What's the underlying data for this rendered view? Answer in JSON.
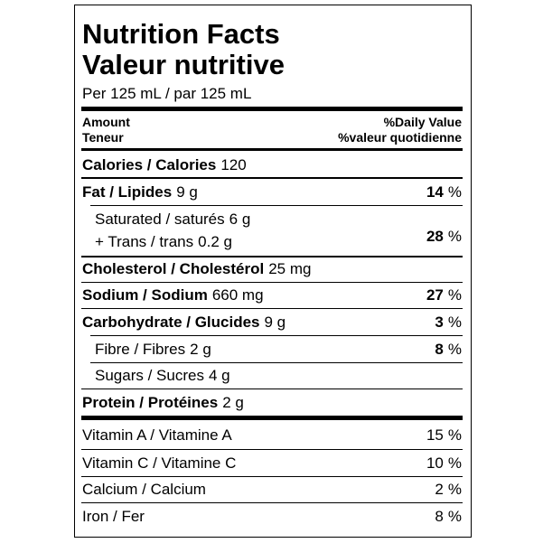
{
  "header": {
    "title_en": "Nutrition Facts",
    "title_fr": "Valeur nutritive",
    "serving": "Per 125 mL / par 125 mL"
  },
  "column_headers": {
    "amount_en": "Amount",
    "amount_fr": "Teneur",
    "dv_en": "%Daily Value",
    "dv_fr": "%valeur quotidienne"
  },
  "nutrients": [
    {
      "label": "Calories / Calories",
      "amount": "120"
    },
    {
      "label": "Fat / Lipides",
      "amount": "9 g",
      "dv": 14,
      "unit": "%"
    },
    {
      "label": "Saturated / saturés",
      "amount": "6 g"
    },
    {
      "label": "+ Trans / trans",
      "amount": "0.2 g",
      "dv": 28,
      "unit": "%"
    },
    {
      "label": "Cholesterol / Cholestérol",
      "amount": "25 mg"
    },
    {
      "label": "Sodium / Sodium",
      "amount": "660 mg",
      "dv": 27,
      "unit": "%"
    },
    {
      "label": "Carbohydrate / Glucides",
      "amount": "9 g",
      "dv": 3,
      "unit": "%"
    },
    {
      "label": "Fibre / Fibres",
      "amount": "2 g",
      "dv": 8,
      "unit": "%"
    },
    {
      "label": "Sugars / Sucres",
      "amount": "4 g"
    },
    {
      "label": "Protein / Protéines",
      "amount": "2 g"
    }
  ],
  "vitamins": [
    {
      "label": "Vitamin A / Vitamine A",
      "dv": 15,
      "unit": "%"
    },
    {
      "label": "Vitamin C / Vitamine C",
      "dv": 10,
      "unit": "%"
    },
    {
      "label": "Calcium / Calcium",
      "dv": 2,
      "unit": "%"
    },
    {
      "label": "Iron / Fer",
      "dv": 8,
      "unit": "%"
    }
  ]
}
